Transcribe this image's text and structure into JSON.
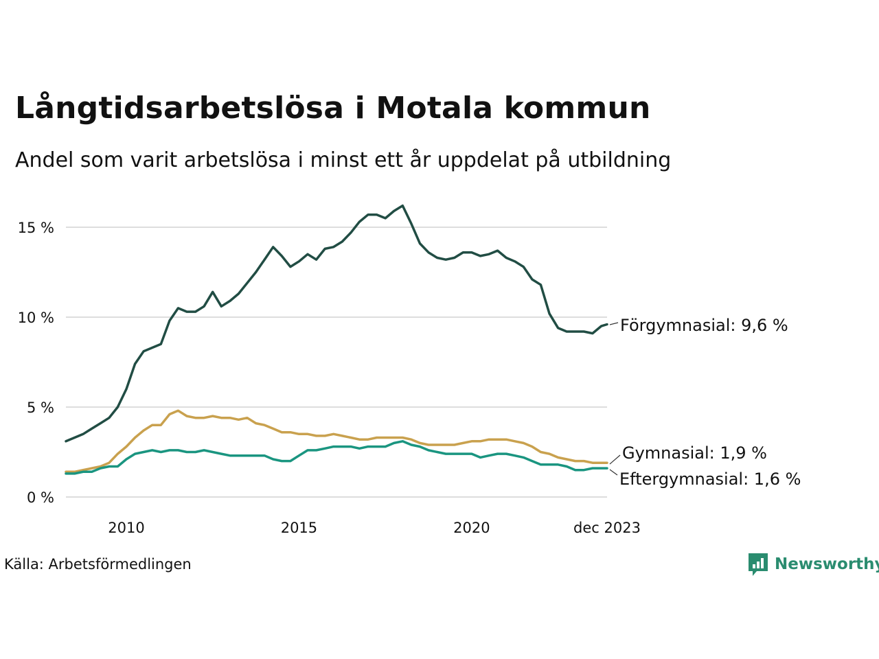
{
  "chart_data": {
    "type": "line",
    "title": "Långtidsarbetslösa i Motala kommun",
    "subtitle": "Andel som varit arbetslösa i minst ett år uppdelat på utbildning",
    "source": "Källa: Arbetsförmedlingen",
    "brand": "Newsworthy",
    "x_range": [
      2008.25,
      2023.92
    ],
    "ylim": [
      0,
      16.5
    ],
    "y_ticks": [
      {
        "value": 0,
        "label": "0 %"
      },
      {
        "value": 5,
        "label": "5 %"
      },
      {
        "value": 10,
        "label": "10 %"
      },
      {
        "value": 15,
        "label": "15 %"
      }
    ],
    "x_ticks": [
      {
        "value": 2010,
        "label": "2010"
      },
      {
        "value": 2015,
        "label": "2015"
      },
      {
        "value": 2020,
        "label": "2020"
      },
      {
        "value": 2023.92,
        "label": "dec 2023"
      }
    ],
    "grid": true,
    "series": [
      {
        "name": "Förgymnasial",
        "end_label": "Förgymnasial: 9,6 %",
        "color": "#214d44",
        "points": [
          [
            2008.25,
            3.1
          ],
          [
            2008.5,
            3.3
          ],
          [
            2008.75,
            3.5
          ],
          [
            2009.0,
            3.8
          ],
          [
            2009.25,
            4.1
          ],
          [
            2009.5,
            4.4
          ],
          [
            2009.75,
            5.0
          ],
          [
            2010.0,
            6.0
          ],
          [
            2010.25,
            7.4
          ],
          [
            2010.5,
            8.1
          ],
          [
            2010.75,
            8.3
          ],
          [
            2011.0,
            8.5
          ],
          [
            2011.25,
            9.8
          ],
          [
            2011.5,
            10.5
          ],
          [
            2011.75,
            10.3
          ],
          [
            2012.0,
            10.3
          ],
          [
            2012.25,
            10.6
          ],
          [
            2012.5,
            11.4
          ],
          [
            2012.75,
            10.6
          ],
          [
            2013.0,
            10.9
          ],
          [
            2013.25,
            11.3
          ],
          [
            2013.5,
            11.9
          ],
          [
            2013.75,
            12.5
          ],
          [
            2014.0,
            13.2
          ],
          [
            2014.25,
            13.9
          ],
          [
            2014.5,
            13.4
          ],
          [
            2014.75,
            12.8
          ],
          [
            2015.0,
            13.1
          ],
          [
            2015.25,
            13.5
          ],
          [
            2015.5,
            13.2
          ],
          [
            2015.75,
            13.8
          ],
          [
            2016.0,
            13.9
          ],
          [
            2016.25,
            14.2
          ],
          [
            2016.5,
            14.7
          ],
          [
            2016.75,
            15.3
          ],
          [
            2017.0,
            15.7
          ],
          [
            2017.25,
            15.7
          ],
          [
            2017.5,
            15.5
          ],
          [
            2017.75,
            15.9
          ],
          [
            2018.0,
            16.2
          ],
          [
            2018.25,
            15.2
          ],
          [
            2018.5,
            14.1
          ],
          [
            2018.75,
            13.6
          ],
          [
            2019.0,
            13.3
          ],
          [
            2019.25,
            13.2
          ],
          [
            2019.5,
            13.3
          ],
          [
            2019.75,
            13.6
          ],
          [
            2020.0,
            13.6
          ],
          [
            2020.25,
            13.4
          ],
          [
            2020.5,
            13.5
          ],
          [
            2020.75,
            13.7
          ],
          [
            2021.0,
            13.3
          ],
          [
            2021.25,
            13.1
          ],
          [
            2021.5,
            12.8
          ],
          [
            2021.75,
            12.1
          ],
          [
            2022.0,
            11.8
          ],
          [
            2022.25,
            10.2
          ],
          [
            2022.5,
            9.4
          ],
          [
            2022.75,
            9.2
          ],
          [
            2023.0,
            9.2
          ],
          [
            2023.25,
            9.2
          ],
          [
            2023.5,
            9.1
          ],
          [
            2023.75,
            9.5
          ],
          [
            2023.92,
            9.6
          ]
        ]
      },
      {
        "name": "Gymnasial",
        "end_label": "Gymnasial: 1,9 %",
        "color": "#c9a14e",
        "points": [
          [
            2008.25,
            1.4
          ],
          [
            2008.5,
            1.4
          ],
          [
            2008.75,
            1.5
          ],
          [
            2009.0,
            1.6
          ],
          [
            2009.25,
            1.7
          ],
          [
            2009.5,
            1.9
          ],
          [
            2009.75,
            2.4
          ],
          [
            2010.0,
            2.8
          ],
          [
            2010.25,
            3.3
          ],
          [
            2010.5,
            3.7
          ],
          [
            2010.75,
            4.0
          ],
          [
            2011.0,
            4.0
          ],
          [
            2011.25,
            4.6
          ],
          [
            2011.5,
            4.8
          ],
          [
            2011.75,
            4.5
          ],
          [
            2012.0,
            4.4
          ],
          [
            2012.25,
            4.4
          ],
          [
            2012.5,
            4.5
          ],
          [
            2012.75,
            4.4
          ],
          [
            2013.0,
            4.4
          ],
          [
            2013.25,
            4.3
          ],
          [
            2013.5,
            4.4
          ],
          [
            2013.75,
            4.1
          ],
          [
            2014.0,
            4.0
          ],
          [
            2014.25,
            3.8
          ],
          [
            2014.5,
            3.6
          ],
          [
            2014.75,
            3.6
          ],
          [
            2015.0,
            3.5
          ],
          [
            2015.25,
            3.5
          ],
          [
            2015.5,
            3.4
          ],
          [
            2015.75,
            3.4
          ],
          [
            2016.0,
            3.5
          ],
          [
            2016.25,
            3.4
          ],
          [
            2016.5,
            3.3
          ],
          [
            2016.75,
            3.2
          ],
          [
            2017.0,
            3.2
          ],
          [
            2017.25,
            3.3
          ],
          [
            2017.5,
            3.3
          ],
          [
            2017.75,
            3.3
          ],
          [
            2018.0,
            3.3
          ],
          [
            2018.25,
            3.2
          ],
          [
            2018.5,
            3.0
          ],
          [
            2018.75,
            2.9
          ],
          [
            2019.0,
            2.9
          ],
          [
            2019.25,
            2.9
          ],
          [
            2019.5,
            2.9
          ],
          [
            2019.75,
            3.0
          ],
          [
            2020.0,
            3.1
          ],
          [
            2020.25,
            3.1
          ],
          [
            2020.5,
            3.2
          ],
          [
            2020.75,
            3.2
          ],
          [
            2021.0,
            3.2
          ],
          [
            2021.25,
            3.1
          ],
          [
            2021.5,
            3.0
          ],
          [
            2021.75,
            2.8
          ],
          [
            2022.0,
            2.5
          ],
          [
            2022.25,
            2.4
          ],
          [
            2022.5,
            2.2
          ],
          [
            2022.75,
            2.1
          ],
          [
            2023.0,
            2.0
          ],
          [
            2023.25,
            2.0
          ],
          [
            2023.5,
            1.9
          ],
          [
            2023.75,
            1.9
          ],
          [
            2023.92,
            1.9
          ]
        ]
      },
      {
        "name": "Eftergymnasial",
        "end_label": "Eftergymnasial: 1,6 %",
        "color": "#1a9580",
        "points": [
          [
            2008.25,
            1.3
          ],
          [
            2008.5,
            1.3
          ],
          [
            2008.75,
            1.4
          ],
          [
            2009.0,
            1.4
          ],
          [
            2009.25,
            1.6
          ],
          [
            2009.5,
            1.7
          ],
          [
            2009.75,
            1.7
          ],
          [
            2010.0,
            2.1
          ],
          [
            2010.25,
            2.4
          ],
          [
            2010.5,
            2.5
          ],
          [
            2010.75,
            2.6
          ],
          [
            2011.0,
            2.5
          ],
          [
            2011.25,
            2.6
          ],
          [
            2011.5,
            2.6
          ],
          [
            2011.75,
            2.5
          ],
          [
            2012.0,
            2.5
          ],
          [
            2012.25,
            2.6
          ],
          [
            2012.5,
            2.5
          ],
          [
            2012.75,
            2.4
          ],
          [
            2013.0,
            2.3
          ],
          [
            2013.25,
            2.3
          ],
          [
            2013.5,
            2.3
          ],
          [
            2013.75,
            2.3
          ],
          [
            2014.0,
            2.3
          ],
          [
            2014.25,
            2.1
          ],
          [
            2014.5,
            2.0
          ],
          [
            2014.75,
            2.0
          ],
          [
            2015.0,
            2.3
          ],
          [
            2015.25,
            2.6
          ],
          [
            2015.5,
            2.6
          ],
          [
            2015.75,
            2.7
          ],
          [
            2016.0,
            2.8
          ],
          [
            2016.25,
            2.8
          ],
          [
            2016.5,
            2.8
          ],
          [
            2016.75,
            2.7
          ],
          [
            2017.0,
            2.8
          ],
          [
            2017.25,
            2.8
          ],
          [
            2017.5,
            2.8
          ],
          [
            2017.75,
            3.0
          ],
          [
            2018.0,
            3.1
          ],
          [
            2018.25,
            2.9
          ],
          [
            2018.5,
            2.8
          ],
          [
            2018.75,
            2.6
          ],
          [
            2019.0,
            2.5
          ],
          [
            2019.25,
            2.4
          ],
          [
            2019.5,
            2.4
          ],
          [
            2019.75,
            2.4
          ],
          [
            2020.0,
            2.4
          ],
          [
            2020.25,
            2.2
          ],
          [
            2020.5,
            2.3
          ],
          [
            2020.75,
            2.4
          ],
          [
            2021.0,
            2.4
          ],
          [
            2021.25,
            2.3
          ],
          [
            2021.5,
            2.2
          ],
          [
            2021.75,
            2.0
          ],
          [
            2022.0,
            1.8
          ],
          [
            2022.25,
            1.8
          ],
          [
            2022.5,
            1.8
          ],
          [
            2022.75,
            1.7
          ],
          [
            2023.0,
            1.5
          ],
          [
            2023.25,
            1.5
          ],
          [
            2023.5,
            1.6
          ],
          [
            2023.75,
            1.6
          ],
          [
            2023.92,
            1.6
          ]
        ]
      }
    ]
  }
}
